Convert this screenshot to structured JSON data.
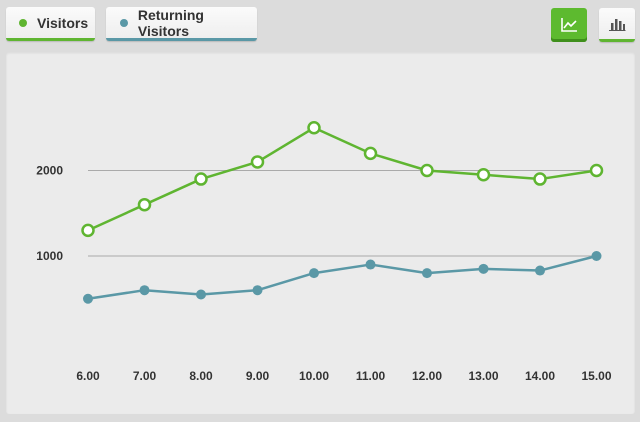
{
  "legend": {
    "visitors_label": "Visitors",
    "returning_label": "Returning Visitors"
  },
  "toolbar": {
    "line_icon": "line-chart-icon",
    "bar_icon": "bar-chart-icon"
  },
  "colors": {
    "visitors": "#5fb531",
    "returning": "#5a98a6",
    "active_button": "#5dba2f"
  },
  "chart_data": {
    "type": "line",
    "x": [
      "6.00",
      "7.00",
      "8.00",
      "9.00",
      "10.00",
      "11.00",
      "12.00",
      "13.00",
      "14.00",
      "15.00"
    ],
    "series": [
      {
        "name": "Visitors",
        "values": [
          1300,
          1600,
          1900,
          2100,
          2500,
          2200,
          2000,
          1950,
          1900,
          2000
        ]
      },
      {
        "name": "Returning Visitors",
        "values": [
          500,
          600,
          550,
          600,
          800,
          900,
          800,
          850,
          830,
          1000
        ]
      }
    ],
    "yticks": [
      "1000",
      "2000"
    ],
    "title": "",
    "xlabel": "",
    "ylabel": "",
    "legend_position": "top-left",
    "grid": true
  }
}
